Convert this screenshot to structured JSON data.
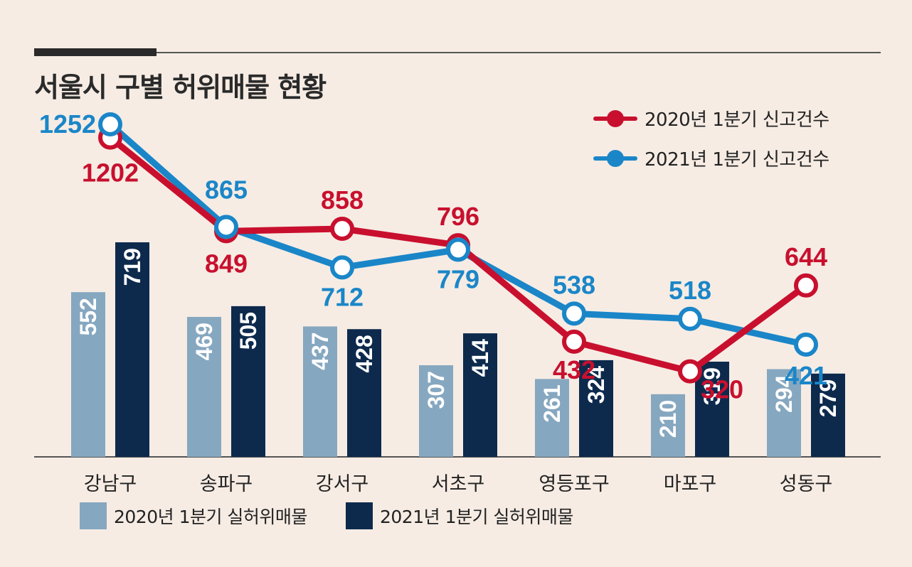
{
  "title": "서울시 구별 허위매물 현황",
  "colors": {
    "red": "#c8102e",
    "blue": "#1a86c8",
    "bar_light": "#86a7c0",
    "bar_dark": "#0d2a4d",
    "text_dark": "#2a2a2a"
  },
  "legend": {
    "line_2020": "2020년 1분기 신고건수",
    "line_2021": "2021년 1분기 신고건수",
    "bar_2020": "2020년 1분기 실허위매물",
    "bar_2021": "2021년 1분기 실허위매물"
  },
  "chart_data": {
    "type": "bar+line",
    "title": "서울시 구별 허위매물 현황",
    "categories": [
      "강남구",
      "송파구",
      "강서구",
      "서초구",
      "영등포구",
      "마포구",
      "성동구"
    ],
    "bars": [
      {
        "name": "2020년 1분기 실허위매물",
        "values": [
          552,
          469,
          437,
          307,
          261,
          210,
          294
        ]
      },
      {
        "name": "2021년 1분기 실허위매물",
        "values": [
          719,
          505,
          428,
          414,
          324,
          319,
          279
        ]
      }
    ],
    "lines": [
      {
        "name": "2020년 1분기 신고건수",
        "values": [
          1202,
          849,
          858,
          796,
          432,
          320,
          644
        ]
      },
      {
        "name": "2021년 1분기 신고건수",
        "values": [
          1252,
          865,
          712,
          779,
          538,
          518,
          421
        ]
      }
    ]
  }
}
